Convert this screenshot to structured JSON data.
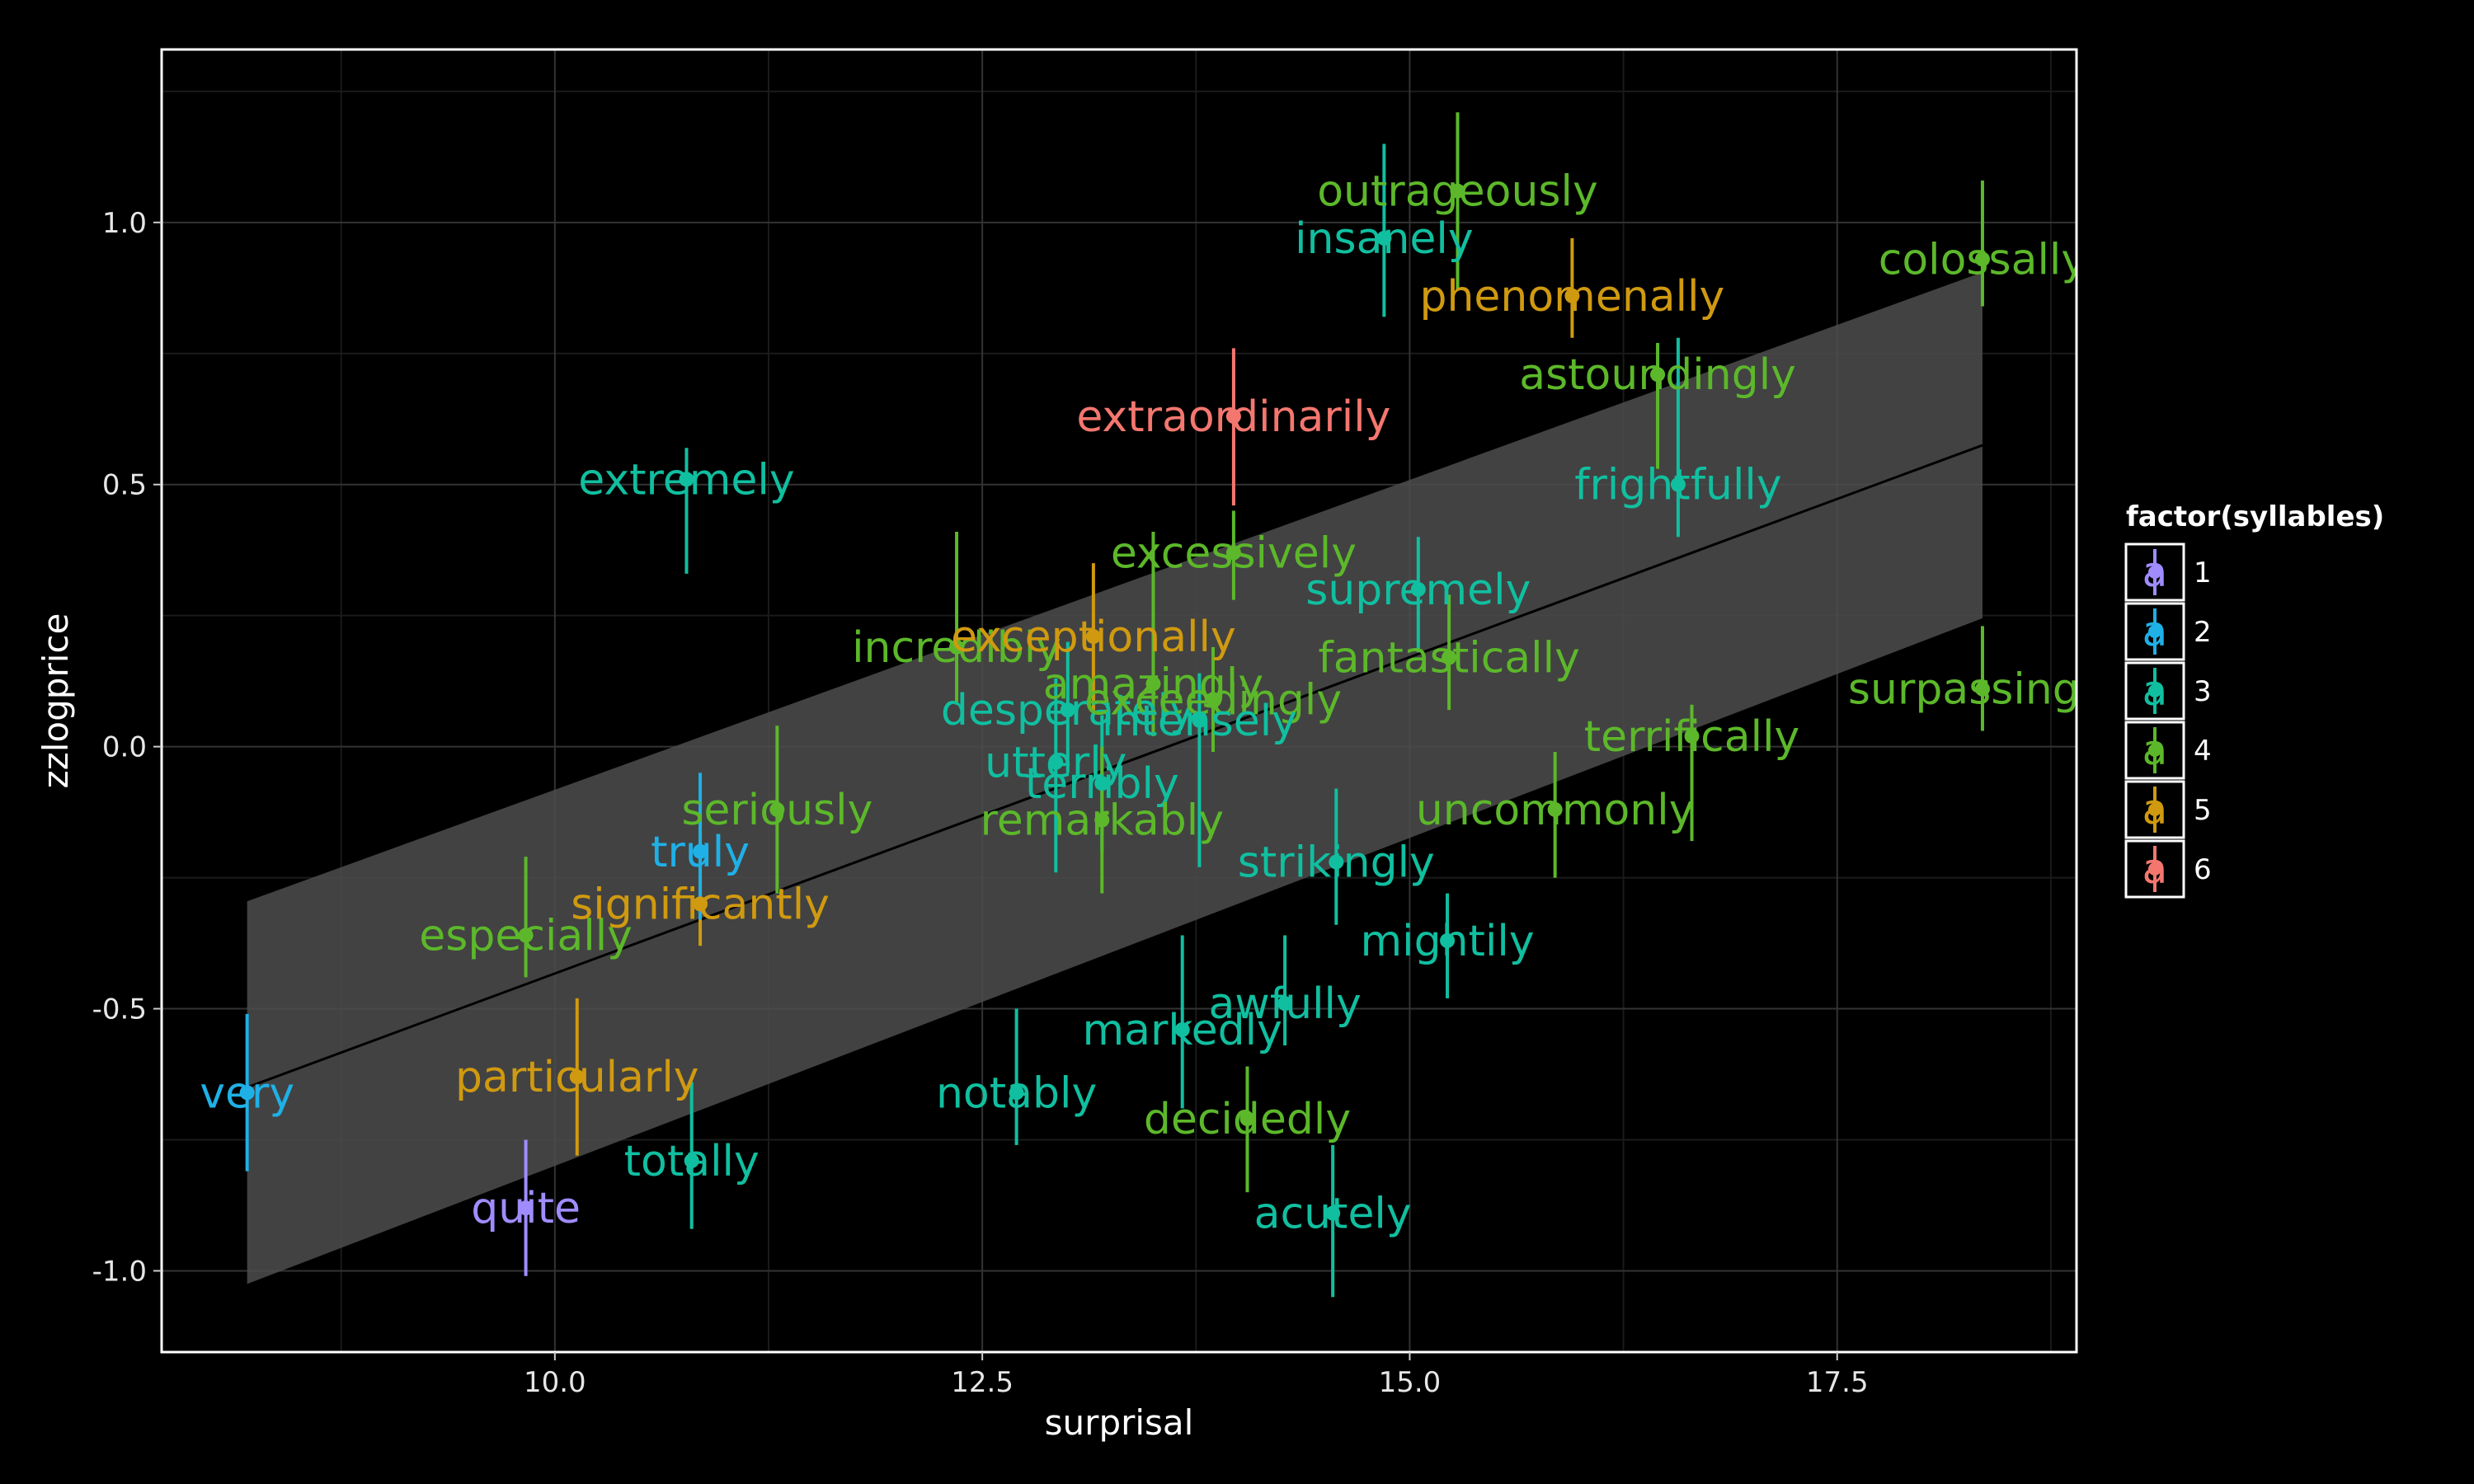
{
  "chart_data": {
    "type": "scatter",
    "title": "",
    "xlabel": "surprisal",
    "ylabel": "zzlogprice",
    "xlim": [
      7.7,
      18.9
    ],
    "ylim": [
      -1.155,
      1.33
    ],
    "x_ticks": [
      10.0,
      12.5,
      15.0,
      17.5
    ],
    "x_tick_labels": [
      "10.0",
      "12.5",
      "15.0",
      "17.5"
    ],
    "y_ticks": [
      -1.0,
      -0.5,
      0.0,
      0.5,
      1.0
    ],
    "y_tick_labels": [
      "-1.0",
      "-0.5",
      "0.0",
      "0.5",
      "1.0"
    ],
    "grid": true,
    "legend": {
      "title": "factor(syllables)",
      "placement": "right",
      "entries": [
        {
          "label": "1",
          "color": "#a08cff"
        },
        {
          "label": "2",
          "color": "#1fb0e6"
        },
        {
          "label": "3",
          "color": "#10bfa0"
        },
        {
          "label": "4",
          "color": "#5cb82a"
        },
        {
          "label": "5",
          "color": "#d09a10"
        },
        {
          "label": "6",
          "color": "#f4776f"
        }
      ],
      "key_glyph": "a"
    },
    "trend": {
      "x": [
        8.2,
        18.35
      ],
      "y": [
        -0.65,
        0.575
      ],
      "ci_upper": [
        -0.295,
        0.905
      ],
      "ci_lower": [
        -1.025,
        0.245
      ]
    },
    "points": [
      {
        "label": "very",
        "x": 8.2,
        "y": -0.66,
        "lo": -0.81,
        "hi": -0.51,
        "syllables": 2
      },
      {
        "label": "quite",
        "x": 9.83,
        "y": -0.88,
        "lo": -1.01,
        "hi": -0.75,
        "syllables": 1
      },
      {
        "label": "particularly",
        "x": 10.13,
        "y": -0.63,
        "lo": -0.78,
        "hi": -0.48,
        "syllables": 5
      },
      {
        "label": "totally",
        "x": 10.8,
        "y": -0.79,
        "lo": -0.92,
        "hi": -0.64,
        "syllables": 3
      },
      {
        "label": "especially",
        "x": 9.83,
        "y": -0.36,
        "lo": -0.44,
        "hi": -0.21,
        "syllables": 4
      },
      {
        "label": "significantly",
        "x": 10.85,
        "y": -0.3,
        "lo": -0.38,
        "hi": -0.14,
        "syllables": 5
      },
      {
        "label": "truly",
        "x": 10.85,
        "y": -0.2,
        "lo": -0.33,
        "hi": -0.05,
        "syllables": 2
      },
      {
        "label": "seriously",
        "x": 11.3,
        "y": -0.12,
        "lo": -0.28,
        "hi": 0.04,
        "syllables": 4
      },
      {
        "label": "extremely",
        "x": 10.77,
        "y": 0.51,
        "lo": 0.33,
        "hi": 0.57,
        "syllables": 3
      },
      {
        "label": "incredibly",
        "x": 12.35,
        "y": 0.19,
        "lo": 0.08,
        "hi": 0.41,
        "syllables": 4
      },
      {
        "label": "exceptionally",
        "x": 13.15,
        "y": 0.21,
        "lo": 0.06,
        "hi": 0.35,
        "syllables": 5
      },
      {
        "label": "extraordinarily",
        "x": 13.97,
        "y": 0.63,
        "lo": 0.46,
        "hi": 0.76,
        "syllables": 6
      },
      {
        "label": "excessively",
        "x": 13.97,
        "y": 0.37,
        "lo": 0.28,
        "hi": 0.45,
        "syllables": 4
      },
      {
        "label": "amazingly",
        "x": 13.5,
        "y": 0.12,
        "lo": 0.02,
        "hi": 0.41,
        "syllables": 4
      },
      {
        "label": "desperately",
        "x": 13.0,
        "y": 0.07,
        "lo": -0.05,
        "hi": 0.2,
        "syllables": 3
      },
      {
        "label": "exceedingly",
        "x": 13.85,
        "y": 0.09,
        "lo": -0.01,
        "hi": 0.19,
        "syllables": 4
      },
      {
        "label": "intensely",
        "x": 13.77,
        "y": 0.05,
        "lo": -0.23,
        "hi": 0.14,
        "syllables": 3
      },
      {
        "label": "utterly",
        "x": 12.93,
        "y": -0.03,
        "lo": -0.24,
        "hi": 0.13,
        "syllables": 3
      },
      {
        "label": "terribly",
        "x": 13.2,
        "y": -0.07,
        "lo": -0.2,
        "hi": 0.06,
        "syllables": 3
      },
      {
        "label": "remarkably",
        "x": 13.2,
        "y": -0.14,
        "lo": -0.28,
        "hi": 0.0,
        "syllables": 4
      },
      {
        "label": "strikingly",
        "x": 14.57,
        "y": -0.22,
        "lo": -0.34,
        "hi": -0.08,
        "syllables": 3
      },
      {
        "label": "mightily",
        "x": 15.22,
        "y": -0.37,
        "lo": -0.48,
        "hi": -0.28,
        "syllables": 3
      },
      {
        "label": "awfully",
        "x": 14.27,
        "y": -0.49,
        "lo": -0.57,
        "hi": -0.36,
        "syllables": 3
      },
      {
        "label": "markedly",
        "x": 13.67,
        "y": -0.54,
        "lo": -0.69,
        "hi": -0.36,
        "syllables": 3
      },
      {
        "label": "notably",
        "x": 12.7,
        "y": -0.66,
        "lo": -0.76,
        "hi": -0.5,
        "syllables": 3
      },
      {
        "label": "decidedly",
        "x": 14.05,
        "y": -0.71,
        "lo": -0.85,
        "hi": -0.61,
        "syllables": 4
      },
      {
        "label": "acutely",
        "x": 14.55,
        "y": -0.89,
        "lo": -1.05,
        "hi": -0.76,
        "syllables": 3
      },
      {
        "label": "supremely",
        "x": 15.05,
        "y": 0.3,
        "lo": 0.18,
        "hi": 0.4,
        "syllables": 3
      },
      {
        "label": "fantastically",
        "x": 15.23,
        "y": 0.17,
        "lo": 0.07,
        "hi": 0.29,
        "syllables": 4
      },
      {
        "label": "uncommonly",
        "x": 15.85,
        "y": -0.12,
        "lo": -0.25,
        "hi": -0.01,
        "syllables": 4
      },
      {
        "label": "terrifically",
        "x": 16.65,
        "y": 0.02,
        "lo": -0.18,
        "hi": 0.08,
        "syllables": 4
      },
      {
        "label": "frightfully",
        "x": 16.57,
        "y": 0.5,
        "lo": 0.4,
        "hi": 0.78,
        "syllables": 3
      },
      {
        "label": "astoundingly",
        "x": 16.45,
        "y": 0.71,
        "lo": 0.53,
        "hi": 0.77,
        "syllables": 4
      },
      {
        "label": "phenomenally",
        "x": 15.95,
        "y": 0.86,
        "lo": 0.78,
        "hi": 0.97,
        "syllables": 5
      },
      {
        "label": "insanely",
        "x": 14.85,
        "y": 0.97,
        "lo": 0.82,
        "hi": 1.15,
        "syllables": 3
      },
      {
        "label": "outrageously",
        "x": 15.28,
        "y": 1.06,
        "lo": 0.87,
        "hi": 1.21,
        "syllables": 4
      },
      {
        "label": "colossally",
        "x": 18.35,
        "y": 0.93,
        "lo": 0.84,
        "hi": 1.08,
        "syllables": 4
      },
      {
        "label": "surpassingly",
        "x": 18.35,
        "y": 0.11,
        "lo": 0.03,
        "hi": 0.23,
        "syllables": 4
      }
    ]
  }
}
